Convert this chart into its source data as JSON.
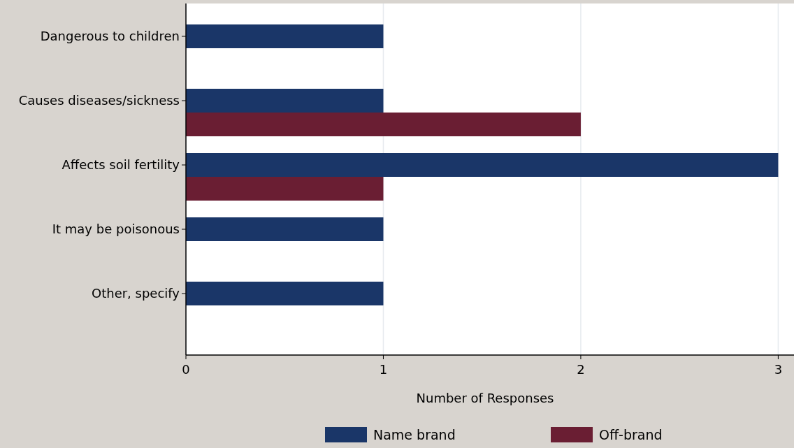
{
  "chart_data": {
    "type": "bar",
    "orientation": "horizontal",
    "xlabel": "Number of Responses",
    "categories": [
      "Dangerous to children",
      "Causes diseases/sickness",
      "Affects soil fertility",
      "It may be poisonous",
      "Other, specify"
    ],
    "series": [
      {
        "name": "Name brand",
        "color": "#1a3668",
        "values": [
          1,
          1,
          3,
          1,
          1
        ]
      },
      {
        "name": "Off-brand",
        "color": "#6a1e33",
        "values": [
          null,
          2,
          1,
          null,
          null
        ]
      }
    ],
    "xlim": [
      0,
      3.08
    ],
    "xticks": [
      0,
      1,
      2,
      3
    ],
    "grid": "x",
    "legend": "bottom"
  }
}
